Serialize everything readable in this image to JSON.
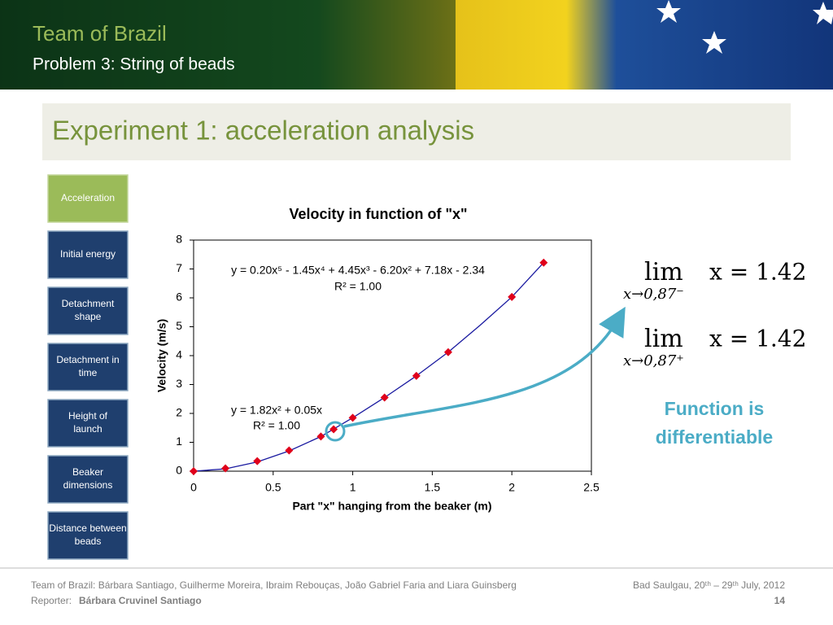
{
  "header": {
    "team": "Team of Brazil",
    "problem": "Problem 3: String of beads"
  },
  "slide_title": "Experiment 1: acceleration analysis",
  "sidebar": [
    "Acceleration",
    "Initial energy",
    "Detachment shape",
    "Detachment in time",
    "Height of launch",
    "Beaker dimensions",
    "Distance between beads"
  ],
  "chart_data": {
    "type": "scatter",
    "title": "Velocity in function of \"x\"",
    "xlabel": "Part \"x\" hanging from the beaker (m)",
    "ylabel": "Velocity (m/s)",
    "x": [
      0,
      0.2,
      0.4,
      0.6,
      0.8,
      0.88,
      1.0,
      1.2,
      1.4,
      1.6,
      2.0,
      2.2
    ],
    "values": [
      0,
      0.1,
      0.35,
      0.72,
      1.2,
      1.45,
      1.85,
      2.55,
      3.3,
      4.12,
      6.03,
      7.22
    ],
    "color": "#e0001b",
    "trendline": {
      "x": [
        0,
        0.2,
        0.4,
        0.6,
        0.8,
        1.0,
        1.2,
        1.4,
        1.6,
        1.8,
        2.0,
        2.2
      ],
      "values": [
        0,
        0.08,
        0.32,
        0.7,
        1.2,
        1.85,
        2.55,
        3.3,
        4.12,
        5.05,
        6.03,
        7.22
      ],
      "color": "#1a1aa0"
    },
    "xlim": [
      0,
      2.5
    ],
    "xticks": [
      0,
      0.5,
      1,
      1.5,
      2,
      2.5
    ],
    "ylim": [
      0,
      8
    ],
    "yticks": [
      0,
      1,
      2,
      3,
      4,
      5,
      6,
      7,
      8
    ],
    "grid": false,
    "annotations": [
      {
        "text": "y = 0.20x⁵ - 1.45x⁴ + 4.45x³ - 6.20x² + 7.18x - 2.34"
      },
      {
        "text": "R² = 1.00"
      },
      {
        "text": "y = 1.82x² + 0.05x"
      },
      {
        "text": "R² = 1.00"
      }
    ]
  },
  "limits": [
    {
      "lim": "lim",
      "sub": "x→0,87⁻",
      "eq": "x = 1.42"
    },
    {
      "lim": "lim",
      "sub": "x→0,87⁺",
      "eq": "x = 1.42"
    }
  ],
  "conclusion": [
    "Function is",
    "differentiable"
  ],
  "footer": {
    "authors": "Team of Brazil: Bárbara Santiago, Guilherme Moreira, Ibraim Rebouças, João Gabriel Faria and Liara Guinsberg",
    "reporter_label": "Reporter:",
    "reporter": "Bárbara Cruvinel Santiago",
    "event": "Bad Saulgau, 20ᵗʰ – 29ᵗʰ July, 2012",
    "page": "14"
  }
}
